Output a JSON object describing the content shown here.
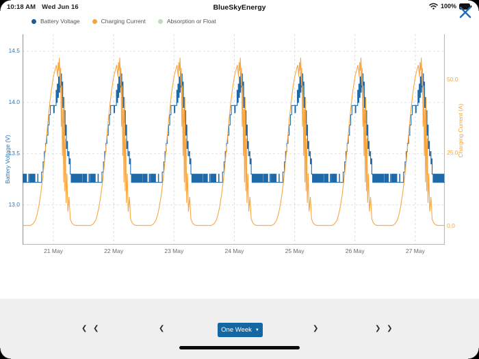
{
  "status_bar": {
    "time": "10:18 AM",
    "date": "Wed Jun 16",
    "title": "BlueSkyEnergy",
    "battery_percent": "100%"
  },
  "legend": {
    "items": [
      {
        "label": "Battery Voltage",
        "color": "#1b5e97"
      },
      {
        "label": "Charging Current",
        "color": "#f6a53a"
      },
      {
        "label": "Absorption or Float",
        "color": "#bfdcbd"
      }
    ]
  },
  "chart_data": {
    "type": "line",
    "title": "",
    "x_ticks": [
      "21 May",
      "22 May",
      "23 May",
      "24 May",
      "25 May",
      "26 May",
      "27 May"
    ],
    "y_left": {
      "label": "Battery Voltage (V)",
      "tick_labels": [
        "13.0",
        "13.5",
        "14.0",
        "14.5"
      ],
      "ticks": [
        13.0,
        13.5,
        14.0,
        14.5
      ],
      "range": [
        12.61,
        14.62
      ],
      "color": "#2e74b5"
    },
    "y_right": {
      "label": "Charging Current (A)",
      "tick_labels": [
        "0.0",
        "25.0",
        "50.0"
      ],
      "ticks": [
        0,
        25,
        50
      ],
      "range": [
        -6.3,
        63.9
      ],
      "color": "#f5a33c"
    },
    "grid": true,
    "legend_position": "top-left",
    "x_range_days": [
      -0.51,
      6.49
    ],
    "series": [
      {
        "name": "Battery Voltage",
        "axis": "left",
        "color": "#2069a9",
        "step": true,
        "daily_pattern": [
          [
            "zz",
            -0.51,
            -0.44,
            13.22,
            13.3,
            6
          ],
          [
            -0.44,
            13.22
          ],
          [
            -0.415,
            13.22
          ],
          [
            -0.41,
            13.3
          ],
          [
            -0.405,
            13.22
          ],
          [
            "zz",
            -0.39,
            -0.3,
            13.22,
            13.3,
            8
          ],
          [
            -0.3,
            13.22
          ],
          [
            -0.265,
            13.22
          ],
          [
            -0.26,
            13.3
          ],
          [
            -0.255,
            13.22
          ],
          [
            -0.2,
            13.22
          ],
          [
            -0.195,
            13.32
          ],
          [
            -0.175,
            13.32
          ],
          [
            -0.17,
            13.42
          ],
          [
            -0.155,
            13.42
          ],
          [
            -0.15,
            13.52
          ],
          [
            -0.135,
            13.52
          ],
          [
            -0.13,
            13.6
          ],
          [
            -0.115,
            13.6
          ],
          [
            -0.11,
            13.68
          ],
          [
            -0.095,
            13.68
          ],
          [
            -0.09,
            13.78
          ],
          [
            -0.075,
            13.78
          ],
          [
            -0.07,
            13.88
          ],
          [
            -0.055,
            13.88
          ],
          [
            -0.05,
            13.97
          ],
          [
            0.0,
            13.97
          ],
          [
            0.005,
            13.9
          ],
          [
            0.015,
            13.97
          ],
          [
            0.04,
            13.97
          ],
          [
            0.045,
            14.12
          ],
          [
            0.055,
            14.0
          ],
          [
            0.065,
            14.18
          ],
          [
            0.075,
            14.05
          ],
          [
            0.085,
            14.25
          ],
          [
            0.095,
            14.1
          ],
          [
            0.105,
            14.3
          ],
          [
            0.115,
            14.15
          ],
          [
            0.125,
            14.28
          ],
          [
            0.135,
            14.05
          ],
          [
            0.145,
            14.2
          ],
          [
            0.155,
            13.95
          ],
          [
            0.165,
            14.05
          ],
          [
            0.175,
            13.8
          ],
          [
            0.185,
            13.92
          ],
          [
            0.195,
            13.68
          ],
          [
            0.205,
            13.78
          ],
          [
            0.215,
            13.55
          ],
          [
            0.225,
            13.62
          ],
          [
            0.235,
            13.48
          ],
          [
            0.25,
            13.52
          ],
          [
            0.26,
            13.4
          ],
          [
            0.27,
            13.45
          ],
          [
            0.28,
            13.3
          ],
          [
            0.295,
            13.22
          ],
          [
            "zz",
            0.3,
            0.48,
            13.22,
            13.3,
            16
          ],
          [
            0.48,
            13.22
          ],
          [
            0.49,
            13.22
          ]
        ]
      },
      {
        "name": "Charging Current",
        "axis": "right",
        "color": "#f9a63e",
        "step": false,
        "daily_pattern": [
          [
            -0.51,
            0.3
          ],
          [
            -0.38,
            0.3
          ],
          [
            -0.34,
            0.8
          ],
          [
            -0.3,
            2
          ],
          [
            -0.27,
            4
          ],
          [
            -0.24,
            7
          ],
          [
            -0.21,
            11
          ],
          [
            -0.18,
            16
          ],
          [
            -0.15,
            22
          ],
          [
            -0.12,
            29
          ],
          [
            -0.09,
            36
          ],
          [
            -0.06,
            42
          ],
          [
            -0.03,
            47
          ],
          [
            0.0,
            51
          ],
          [
            0.03,
            53.5
          ],
          [
            0.05,
            55
          ],
          [
            0.07,
            51
          ],
          [
            0.08,
            56
          ],
          [
            0.09,
            53
          ],
          [
            0.1,
            57.5
          ],
          [
            0.115,
            48
          ],
          [
            0.12,
            54
          ],
          [
            0.13,
            34
          ],
          [
            0.14,
            48
          ],
          [
            0.15,
            24
          ],
          [
            0.16,
            40
          ],
          [
            0.17,
            15
          ],
          [
            0.18,
            44
          ],
          [
            0.19,
            12
          ],
          [
            0.2,
            30
          ],
          [
            0.21,
            8
          ],
          [
            0.225,
            18
          ],
          [
            0.24,
            5
          ],
          [
            0.26,
            10
          ],
          [
            0.28,
            2.5
          ],
          [
            0.31,
            1
          ],
          [
            0.35,
            0.4
          ],
          [
            0.4,
            0.3
          ],
          [
            0.49,
            0.3
          ]
        ]
      },
      {
        "name": "Absorption or Float",
        "axis": "left",
        "color": "#bfdcbd",
        "step": false,
        "daily_pattern": []
      }
    ]
  },
  "controls": {
    "skip_back": "❮ ❮",
    "back": "❮",
    "period": "One Week",
    "caret": "▼",
    "forward": "❯",
    "skip_forward": "❯ ❯"
  }
}
